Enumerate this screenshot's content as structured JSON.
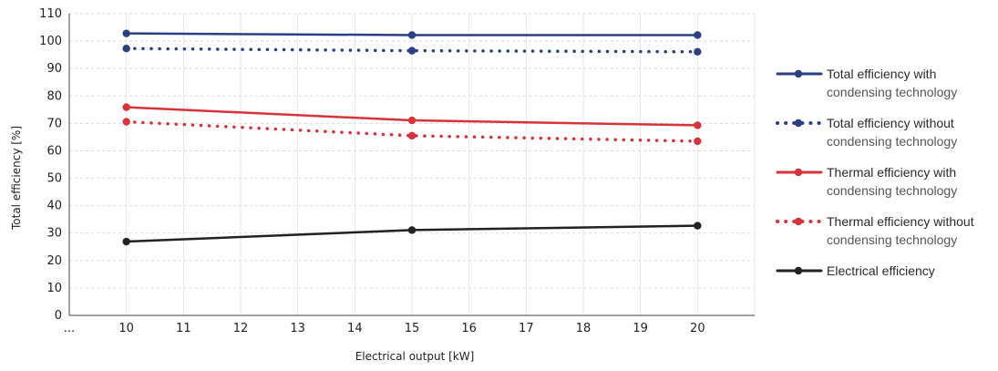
{
  "chart_data": {
    "type": "line",
    "title": "",
    "xlabel": "Electrical output [kW]",
    "ylabel": "Total efficiency [%]",
    "x_tick_labels": [
      "...",
      "10",
      "11",
      "12",
      "13",
      "14",
      "15",
      "16",
      "17",
      "18",
      "19",
      "20"
    ],
    "y_ticks": [
      0,
      10,
      20,
      30,
      40,
      50,
      60,
      70,
      80,
      90,
      100,
      110
    ],
    "xlim": [
      9,
      21
    ],
    "ylim": [
      0,
      110
    ],
    "grid": true,
    "legend_position": "right",
    "series": [
      {
        "name": "Total efficiency with",
        "name_line2": "condensing technology",
        "color": "#2b3f86",
        "style": "solid",
        "x": [
          10,
          15,
          20
        ],
        "y": [
          102.8,
          102.2,
          102.2
        ]
      },
      {
        "name": "Total efficiency without",
        "name_line2": "condensing technology",
        "color": "#2b3f86",
        "style": "dotted",
        "x": [
          10,
          15,
          20
        ],
        "y": [
          97.3,
          96.5,
          96.1
        ]
      },
      {
        "name": "Thermal efficiency with",
        "name_line2": "condensing technology",
        "color": "#d8333b",
        "style": "solid",
        "x": [
          10,
          15,
          20
        ],
        "y": [
          75.9,
          71.1,
          69.3
        ]
      },
      {
        "name": "Thermal efficiency without",
        "name_line2": "condensing technology",
        "color": "#d8333b",
        "style": "dotted",
        "x": [
          10,
          15,
          20
        ],
        "y": [
          70.6,
          65.5,
          63.5
        ]
      },
      {
        "name": "Electrical efficiency",
        "name_line2": "",
        "color": "#222222",
        "style": "solid",
        "x": [
          10,
          15,
          20
        ],
        "y": [
          26.9,
          31.1,
          32.7
        ]
      }
    ]
  }
}
